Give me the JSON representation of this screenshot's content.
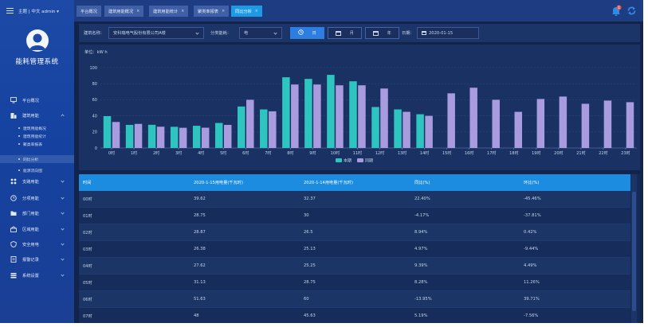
{
  "header": {
    "user_text": "主题 | 中文  admin ▾"
  },
  "sidebar": {
    "app_name": "能耗管理系统",
    "items": [
      {
        "label": "平台概况",
        "icon": "monitor-icon"
      },
      {
        "label": "建筑用能",
        "icon": "building-icon",
        "expanded": true,
        "children": [
          "建筑用能概况",
          "建筑用能统计",
          "聚类率报表",
          "同比分析",
          "能源流向图"
        ],
        "active_child": 3
      },
      {
        "label": "支路用能",
        "icon": "branch-icon"
      },
      {
        "label": "分项用能",
        "icon": "clock-icon"
      },
      {
        "label": "部门用能",
        "icon": "folder-icon"
      },
      {
        "label": "区域用能",
        "icon": "region-icon"
      },
      {
        "label": "安全用电",
        "icon": "shield-icon"
      },
      {
        "label": "报警记录",
        "icon": "document-icon"
      },
      {
        "label": "系统设置",
        "icon": "settings-icon"
      }
    ]
  },
  "tabs": [
    {
      "label": "平台概况",
      "closable": false
    },
    {
      "label": "建筑用能概况",
      "closable": true
    },
    {
      "label": "建筑用能统计",
      "closable": true
    },
    {
      "label": "聚类率报表",
      "closable": true
    },
    {
      "label": "同比分析",
      "closable": true,
      "active": true
    }
  ],
  "notification": {
    "count": "1"
  },
  "filters": {
    "building_label": "建筑名称：",
    "building_value": "安科瑞电气股份有限公司A楼",
    "category_label": "分类能耗：",
    "category_value": "电",
    "period_day": "日",
    "period_month": "月",
    "period_year": "年",
    "date_label": "日期：",
    "date_value": "2020-01-15"
  },
  "chart_data": {
    "type": "bar",
    "unit_label": "单位：kW h",
    "categories": [
      "0时",
      "1时",
      "2时",
      "3时",
      "4时",
      "5时",
      "6时",
      "7时",
      "8时",
      "9时",
      "10时",
      "11时",
      "12时",
      "13时",
      "14时",
      "15时",
      "16时",
      "17时",
      "18时",
      "19时",
      "20时",
      "21时",
      "22时",
      "23时"
    ],
    "series": [
      {
        "name": "本期",
        "color": "#2ec4c0",
        "values": [
          39.62,
          28.75,
          28.87,
          26.38,
          27.62,
          31.13,
          51.63,
          48,
          88,
          86,
          91,
          83,
          51,
          48,
          42,
          null,
          null,
          null,
          null,
          null,
          null,
          null,
          null,
          null
        ]
      },
      {
        "name": "同期",
        "color": "#a99be0",
        "values": [
          32.37,
          30,
          26.5,
          25.13,
          25.25,
          28.75,
          60,
          45.63,
          79,
          79,
          78,
          78,
          74,
          45,
          40,
          68,
          75,
          60,
          45,
          61,
          64,
          55,
          59,
          57
        ]
      }
    ],
    "ylim": [
      0,
      100
    ],
    "yticks": [
      0,
      20,
      40,
      60,
      80,
      100
    ],
    "grid": true,
    "legend": "bottom-center"
  },
  "table": {
    "columns": [
      "时间",
      "2020-1-15用电量(千瓦时)",
      "2020-1-14用电量(千瓦时)",
      "同比(%)",
      "环比(%)"
    ],
    "rows": [
      [
        "00时",
        "39.62",
        "32.37",
        "22.40%",
        "-45.46%"
      ],
      [
        "01时",
        "28.75",
        "30",
        "-4.17%",
        "-37.81%"
      ],
      [
        "02时",
        "28.87",
        "26.5",
        "8.94%",
        "0.42%"
      ],
      [
        "03时",
        "26.38",
        "25.13",
        "4.97%",
        "-9.44%"
      ],
      [
        "04时",
        "27.62",
        "25.25",
        "9.39%",
        "4.49%"
      ],
      [
        "05时",
        "31.13",
        "28.75",
        "8.28%",
        "11.26%"
      ],
      [
        "06时",
        "51.63",
        "60",
        "-13.95%",
        "39.71%"
      ],
      [
        "07时",
        "48",
        "45.63",
        "5.19%",
        "-7.56%"
      ]
    ]
  }
}
